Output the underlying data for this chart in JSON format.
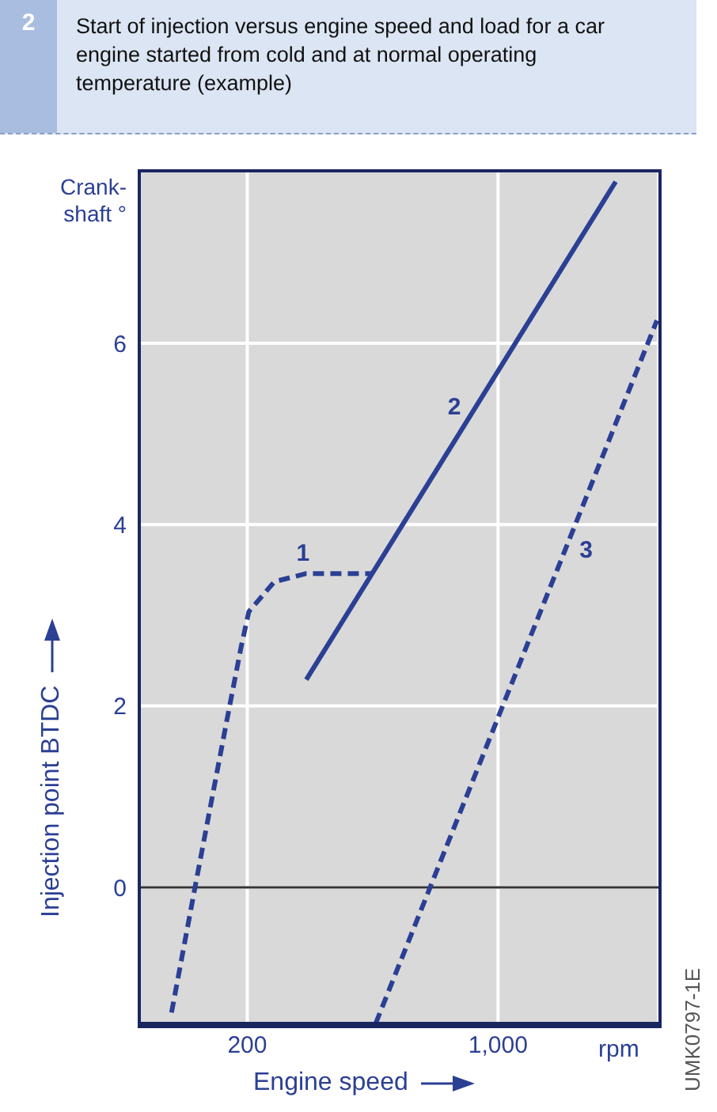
{
  "chart_data": {
    "type": "line",
    "title": "Start of injection versus engine speed and load for a car engine started from cold and at normal operating temperature (example)",
    "xlabel": "Engine speed",
    "ylabel": "Injection point BTDC",
    "annotations": [
      "2",
      "Crank-shaft °",
      "rpm",
      "UMK0797-1E"
    ],
    "log": "x",
    "xlim": [
      100,
      2800
    ],
    "xticks": [
      200,
      {
        "value": 1000,
        "label": "1,000"
      }
    ],
    "ylim": [
      -1.5,
      7.9
    ],
    "yticks": [
      0,
      2,
      4,
      6
    ],
    "grid": true,
    "marker": "none",
    "ref_lines": [
      {
        "axis": "y",
        "value": 0,
        "color": "#333333"
      }
    ],
    "series": [
      {
        "name": "1",
        "color": "#2b3f94",
        "line_style": "dashed",
        "x": [
          123,
          143,
          175,
          192,
          202,
          238,
          292,
          448
        ],
        "values": [
          -1.38,
          0,
          1.82,
          2.64,
          3.04,
          3.37,
          3.46,
          3.46
        ]
      },
      {
        "name": "2",
        "color": "#2b3f94",
        "line_style": "solid",
        "x": [
          292,
          2128
        ],
        "values": [
          2.29,
          7.78
        ]
      },
      {
        "name": "3",
        "color": "#2b3f94",
        "line_style": "dashed",
        "x": [
          456,
          2773
        ],
        "values": [
          -1.5,
          6.25
        ]
      }
    ]
  }
}
